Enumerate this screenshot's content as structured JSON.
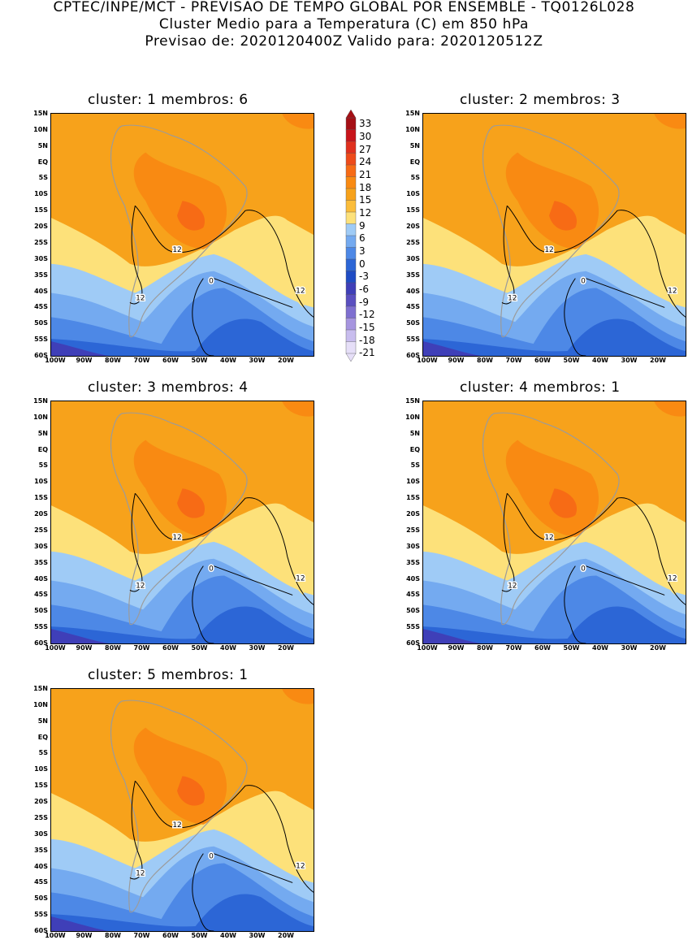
{
  "header": {
    "line1": "CPTEC/INPE/MCT - PREVISAO DE TEMPO GLOBAL POR ENSEMBLE - TQ0126L028",
    "line2": "Cluster Medio para a Temperatura (C) em 850 hPa",
    "line3": "Previsao de: 2020120400Z   Valido para: 2020120512Z"
  },
  "axes": {
    "y_ticks": [
      "15N",
      "10N",
      "5N",
      "EQ",
      "5S",
      "10S",
      "15S",
      "20S",
      "25S",
      "30S",
      "35S",
      "40S",
      "45S",
      "50S",
      "55S",
      "60S"
    ],
    "x_ticks": [
      "100W",
      "90W",
      "80W",
      "70W",
      "60W",
      "50W",
      "40W",
      "30W",
      "20W"
    ]
  },
  "colorbar": {
    "labels": [
      "33",
      "30",
      "27",
      "24",
      "21",
      "18",
      "15",
      "12",
      "9",
      "6",
      "3",
      "0",
      "-3",
      "-6",
      "-9",
      "-12",
      "-15",
      "-18",
      "-21"
    ],
    "colors": [
      "#a50f15",
      "#c8141a",
      "#e0301e",
      "#ee4b1a",
      "#f76b15",
      "#f98a12",
      "#f7a21b",
      "#fbbd3a",
      "#fde17a",
      "#9fcbf6",
      "#74aaf0",
      "#4d88e6",
      "#2c66d6",
      "#1f4cc4",
      "#3f3fb8",
      "#5a4fc0",
      "#7e6fd0",
      "#a695df",
      "#c8bdee",
      "#e6dff8"
    ]
  },
  "panels": [
    {
      "title": "cluster: 1   membros: 6",
      "contour_labels": [
        "12",
        "12",
        "12",
        "0"
      ]
    },
    {
      "title": "cluster: 2   membros: 3",
      "contour_labels": [
        "12",
        "12",
        "12",
        "0"
      ]
    },
    {
      "title": "cluster: 3   membros: 4",
      "contour_labels": [
        "12",
        "12",
        "12",
        "0"
      ]
    },
    {
      "title": "cluster: 4   membros: 1",
      "contour_labels": [
        "12",
        "12",
        "12",
        "0"
      ]
    },
    {
      "title": "cluster: 5   membros: 1",
      "contour_labels": [
        "12",
        "12",
        "12",
        "0"
      ]
    }
  ]
}
